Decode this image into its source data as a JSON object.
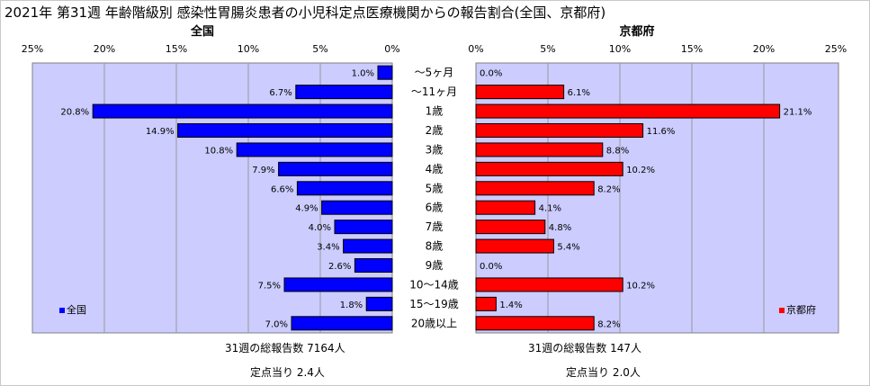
{
  "chart_data": {
    "type": "bar",
    "orientation": "horizontal-butterfly",
    "title": "2021年 第31週 年齢階級別 感染性胃腸炎患者の小児科定点医療機関からの報告割合(全国、京都府)",
    "categories": [
      "～5ヶ月",
      "～11ヶ月",
      "1歳",
      "2歳",
      "3歳",
      "4歳",
      "5歳",
      "6歳",
      "7歳",
      "8歳",
      "9歳",
      "10～14歳",
      "15～19歳",
      "20歳以上"
    ],
    "x_ticks_left": [
      "25%",
      "20%",
      "15%",
      "10%",
      "5%",
      "0%"
    ],
    "x_ticks_right": [
      "0%",
      "5%",
      "10%",
      "15%",
      "20%",
      "25%"
    ],
    "xlim": [
      0,
      25
    ],
    "grid": true,
    "series": [
      {
        "name": "全国",
        "color": "#0000ff",
        "values": [
          1.0,
          6.7,
          20.8,
          14.9,
          10.8,
          7.9,
          6.6,
          4.9,
          4.0,
          3.4,
          2.6,
          7.5,
          1.8,
          7.0
        ],
        "labels": [
          "1.0%",
          "6.7%",
          "20.8%",
          "14.9%",
          "10.8%",
          "7.9%",
          "6.6%",
          "4.9%",
          "4.0%",
          "3.4%",
          "2.6%",
          "7.5%",
          "1.8%",
          "7.0%"
        ]
      },
      {
        "name": "京都府",
        "color": "#ff0000",
        "values": [
          0.0,
          6.1,
          21.1,
          11.6,
          8.8,
          10.2,
          8.2,
          4.1,
          4.8,
          5.4,
          0.0,
          10.2,
          1.4,
          8.2
        ],
        "labels": [
          "0.0%",
          "6.1%",
          "21.1%",
          "11.6%",
          "8.8%",
          "10.2%",
          "8.2%",
          "4.1%",
          "4.8%",
          "5.4%",
          "0.0%",
          "10.2%",
          "1.4%",
          "8.2%"
        ]
      }
    ],
    "panel_titles": {
      "left": "全国",
      "right": "京都府"
    },
    "legend": {
      "left": "全国",
      "right": "京都府",
      "placement": "bottom"
    },
    "panel_background": "#ccccff",
    "footer": {
      "left_total": "31週の総報告数 7164人",
      "left_per_site": "定点当り 2.4人",
      "right_total": "31週の総報告数 147人",
      "right_per_site": "定点当り 2.0人"
    }
  }
}
